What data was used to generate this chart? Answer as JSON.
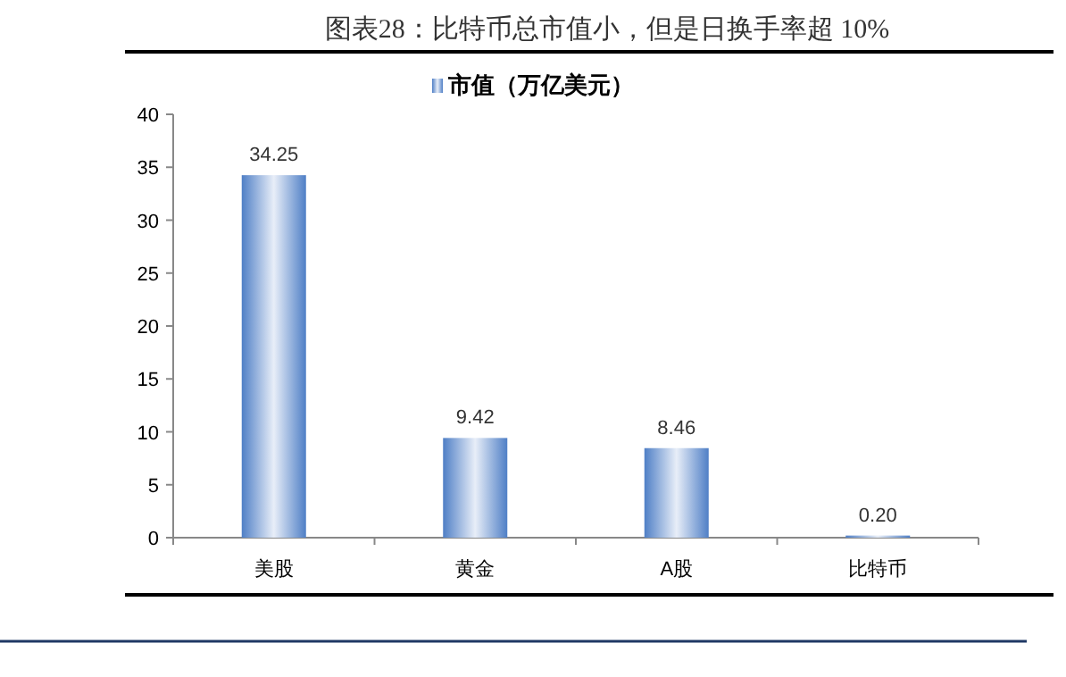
{
  "chart_data": {
    "type": "bar",
    "title": "图表28：比特币总市值小，但是日换手率超 10%",
    "categories": [
      "美股",
      "黄金",
      "A股",
      "比特币"
    ],
    "series": [
      {
        "name": "市值（万亿美元）",
        "color": "#4f7fc6",
        "values": [
          34.25,
          9.42,
          8.46,
          0.2
        ]
      }
    ],
    "value_labels": [
      "34.25",
      "9.42",
      "8.46",
      "0.20"
    ],
    "ylim": [
      0,
      40
    ],
    "yticks": [
      0,
      5,
      10,
      15,
      20,
      25,
      30,
      35,
      40
    ],
    "grid": false,
    "legend": "top"
  }
}
